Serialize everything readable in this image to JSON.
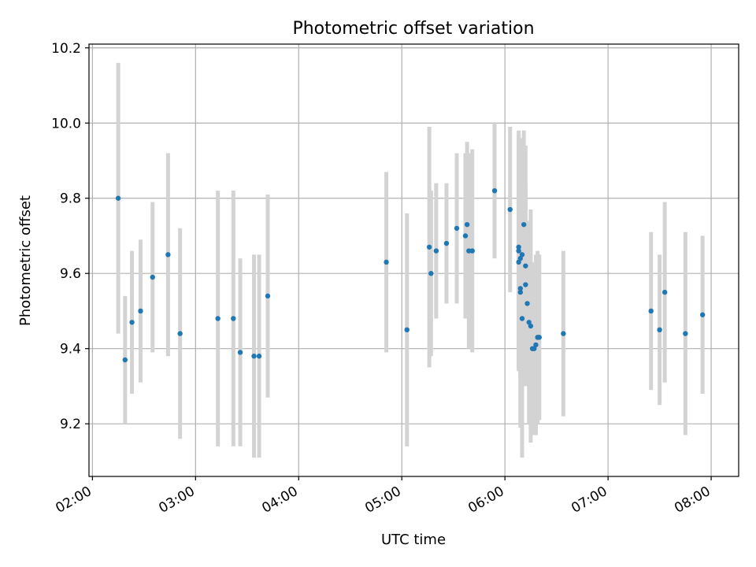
{
  "chart_data": {
    "type": "scatter",
    "title": "Photometric offset variation",
    "xlabel": "UTC time",
    "ylabel": "Photometric offset",
    "x_ticks": [
      "02:00",
      "03:00",
      "04:00",
      "05:00",
      "06:00",
      "07:00",
      "08:00"
    ],
    "y_ticks": [
      "9.2",
      "9.4",
      "9.6",
      "9.8",
      "10.0",
      "10.2"
    ],
    "xlim": [
      "01:58",
      "08:16"
    ],
    "ylim": [
      9.06,
      10.21
    ],
    "grid": true,
    "colors": {
      "point": "#1f77b4",
      "errorbar": "#d3d3d3",
      "grid": "#b0b0b0"
    },
    "series": [
      {
        "x": [
          "02:15",
          "02:19",
          "02:23",
          "02:28",
          "02:35",
          "02:44",
          "02:51",
          "03:13",
          "03:22",
          "03:26",
          "03:34",
          "03:37",
          "03:42",
          "04:51",
          "05:03",
          "05:16",
          "05:17",
          "05:20",
          "05:26",
          "05:32",
          "05:37",
          "05:38",
          "05:39",
          "05:41",
          "05:54",
          "06:03",
          "06:08",
          "06:08",
          "06:08",
          "06:09",
          "06:09",
          "06:09",
          "06:10",
          "06:10",
          "06:11",
          "06:12",
          "06:12",
          "06:13",
          "06:14",
          "06:15",
          "06:16",
          "06:17",
          "06:18",
          "06:19",
          "06:20",
          "06:34",
          "07:25",
          "07:30",
          "07:33",
          "07:45",
          "07:55"
        ],
        "y": [
          9.8,
          9.37,
          9.47,
          9.5,
          9.59,
          9.65,
          9.44,
          9.48,
          9.48,
          9.39,
          9.38,
          9.38,
          9.54,
          9.63,
          9.45,
          9.67,
          9.6,
          9.66,
          9.68,
          9.72,
          9.7,
          9.73,
          9.66,
          9.66,
          9.82,
          9.77,
          9.66,
          9.63,
          9.67,
          9.64,
          9.56,
          9.55,
          9.48,
          9.65,
          9.73,
          9.62,
          9.57,
          9.52,
          9.47,
          9.46,
          9.4,
          9.4,
          9.41,
          9.43,
          9.43,
          9.44,
          9.5,
          9.45,
          9.55,
          9.44,
          9.49
        ],
        "err": [
          0.36,
          0.17,
          0.19,
          0.19,
          0.2,
          0.27,
          0.28,
          0.34,
          0.34,
          0.25,
          0.27,
          0.27,
          0.27,
          0.24,
          0.31,
          0.32,
          0.22,
          0.18,
          0.16,
          0.2,
          0.22,
          0.22,
          0.26,
          0.27,
          0.18,
          0.22,
          0.31,
          0.29,
          0.31,
          0.32,
          0.35,
          0.36,
          0.37,
          0.27,
          0.25,
          0.32,
          0.26,
          0.21,
          0.27,
          0.31,
          0.21,
          0.23,
          0.24,
          0.23,
          0.22,
          0.22,
          0.21,
          0.2,
          0.24,
          0.27,
          0.21
        ]
      }
    ]
  }
}
